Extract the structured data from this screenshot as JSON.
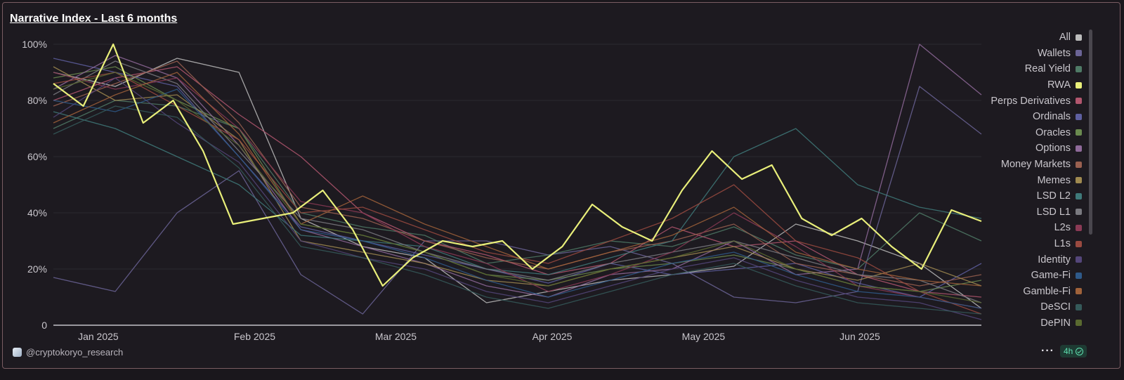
{
  "header": {
    "title": "Narrative Index - Last 6 months"
  },
  "footer": {
    "handle": "@cryptokoryo_research",
    "more": "···",
    "interval": "4h"
  },
  "chart_data": {
    "type": "line",
    "title": "Narrative Index - Last 6 months",
    "x_range": [
      "2024-12-27",
      "2025-06-29"
    ],
    "x_ticks": [
      {
        "label": "Jan 2025",
        "date": "2025-01-01"
      },
      {
        "label": "Feb 2025",
        "date": "2025-02-01"
      },
      {
        "label": "Mar 2025",
        "date": "2025-03-01"
      },
      {
        "label": "Apr 2025",
        "date": "2025-04-01"
      },
      {
        "label": "May 2025",
        "date": "2025-05-01"
      },
      {
        "label": "Jun 2025",
        "date": "2025-06-01"
      }
    ],
    "y_ticks": [
      "0",
      "20%",
      "40%",
      "60%",
      "80%",
      "100%"
    ],
    "ylim": [
      0,
      100
    ],
    "grid": true,
    "legend_position": "right",
    "colors": {
      "rwa": "#e9ef7a",
      "background": "#1d1a20"
    },
    "series": [
      {
        "name": "All",
        "color": "#bcbcbc",
        "values": [
          90,
          85,
          95,
          90,
          38,
          28,
          24,
          8,
          12,
          16,
          18,
          21,
          36,
          30,
          22,
          6
        ]
      },
      {
        "name": "Wallets",
        "color": "#6b6496",
        "values": [
          17,
          12,
          40,
          55,
          18,
          4,
          30,
          30,
          25,
          28,
          22,
          10,
          8,
          12,
          85,
          68
        ]
      },
      {
        "name": "Real Yield",
        "color": "#4f7a66",
        "values": [
          70,
          80,
          78,
          70,
          40,
          35,
          32,
          22,
          25,
          30,
          28,
          35,
          25,
          20,
          40,
          30
        ]
      },
      {
        "name": "RWA",
        "color": "#e9ef7a",
        "values": [
          86,
          78,
          100,
          72,
          80,
          62,
          36,
          38,
          40,
          48,
          34,
          14,
          24,
          30,
          28,
          30,
          20,
          28,
          43,
          35,
          30,
          48,
          62,
          52,
          57,
          38,
          32,
          38,
          28,
          20,
          41,
          37
        ]
      },
      {
        "name": "Perps Derivatives",
        "color": "#b2566e",
        "values": [
          80,
          88,
          92,
          75,
          60,
          40,
          30,
          25,
          18,
          22,
          35,
          28,
          30,
          18,
          12,
          10
        ]
      },
      {
        "name": "Ordinals",
        "color": "#5e5fa0",
        "values": [
          95,
          90,
          85,
          60,
          35,
          30,
          25,
          20,
          15,
          22,
          18,
          20,
          22,
          15,
          10,
          22
        ]
      },
      {
        "name": "Oracles",
        "color": "#6a8a4f",
        "values": [
          88,
          92,
          80,
          70,
          36,
          32,
          26,
          18,
          16,
          20,
          22,
          25,
          20,
          14,
          12,
          16
        ]
      },
      {
        "name": "Options",
        "color": "#8f6a9a",
        "values": [
          84,
          96,
          88,
          64,
          34,
          28,
          22,
          14,
          10,
          18,
          20,
          30,
          18,
          20,
          100,
          82
        ]
      },
      {
        "name": "Money Markets",
        "color": "#9a6050",
        "values": [
          78,
          86,
          94,
          72,
          42,
          38,
          30,
          24,
          20,
          26,
          30,
          36,
          22,
          18,
          14,
          18
        ]
      },
      {
        "name": "Memes",
        "color": "#a08a50",
        "values": [
          92,
          80,
          82,
          66,
          30,
          26,
          22,
          16,
          14,
          20,
          24,
          28,
          20,
          16,
          22,
          14
        ]
      },
      {
        "name": "LSD L2",
        "color": "#3f7a7a",
        "values": [
          76,
          70,
          60,
          50,
          32,
          30,
          28,
          20,
          18,
          24,
          30,
          60,
          70,
          50,
          42,
          38
        ]
      },
      {
        "name": "LSD L1",
        "color": "#7a7a80",
        "values": [
          82,
          94,
          86,
          62,
          38,
          34,
          26,
          20,
          16,
          22,
          26,
          30,
          24,
          18,
          16,
          8
        ]
      },
      {
        "name": "L2s",
        "color": "#8a3a55",
        "values": [
          90,
          84,
          88,
          70,
          44,
          40,
          28,
          22,
          12,
          18,
          26,
          40,
          28,
          14,
          10,
          6
        ]
      },
      {
        "name": "L1s",
        "color": "#9a4a40",
        "values": [
          86,
          90,
          78,
          66,
          40,
          42,
          34,
          26,
          22,
          30,
          38,
          50,
          30,
          24,
          12,
          4
        ]
      },
      {
        "name": "Identity",
        "color": "#54467a",
        "values": [
          74,
          88,
          72,
          58,
          30,
          24,
          20,
          12,
          8,
          14,
          20,
          24,
          16,
          10,
          8,
          2
        ]
      },
      {
        "name": "Game-Fi",
        "color": "#2f5a8a",
        "values": [
          80,
          76,
          84,
          60,
          34,
          30,
          24,
          16,
          10,
          16,
          22,
          26,
          18,
          12,
          10,
          6
        ]
      },
      {
        "name": "Gamble-Fi",
        "color": "#a0623a",
        "values": [
          72,
          82,
          90,
          68,
          36,
          46,
          36,
          28,
          20,
          26,
          32,
          42,
          26,
          20,
          16,
          14
        ]
      },
      {
        "name": "DeSCI",
        "color": "#355a5a",
        "values": [
          68,
          78,
          74,
          56,
          28,
          24,
          18,
          10,
          6,
          12,
          18,
          22,
          14,
          8,
          6,
          4
        ]
      },
      {
        "name": "DePIN",
        "color": "#5a6a30",
        "values": [
          84,
          90,
          80,
          64,
          36,
          32,
          26,
          18,
          14,
          20,
          24,
          30,
          20,
          14,
          12,
          8
        ]
      }
    ]
  }
}
